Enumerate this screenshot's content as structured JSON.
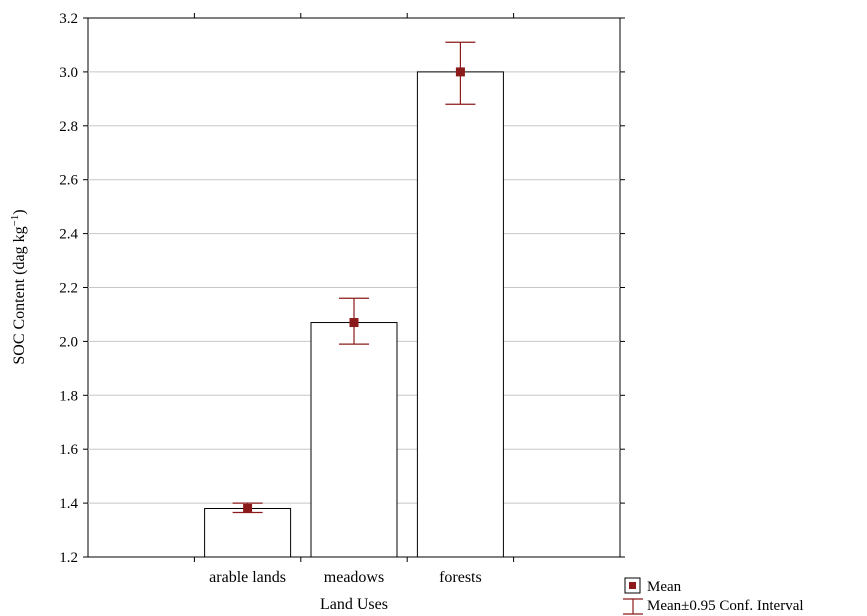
{
  "chart_data": {
    "type": "bar",
    "categories": [
      "arable lands",
      "meadows",
      "forests"
    ],
    "series": [
      {
        "name": "Mean",
        "values": [
          1.38,
          2.07,
          3.0
        ],
        "ci_low": [
          1.365,
          1.99,
          2.88
        ],
        "ci_high": [
          1.4,
          2.16,
          3.11
        ]
      }
    ],
    "xlabel": "Land Uses",
    "ylabel_main": "SOC Content (dag kg",
    "ylabel_sup": "−1",
    "ylabel_close": ")",
    "ylim": [
      1.2,
      3.2
    ],
    "yticks": [
      "1.2",
      "1.4",
      "1.6",
      "1.8",
      "2.0",
      "2.2",
      "2.4",
      "2.6",
      "2.8",
      "3.0",
      "3.2"
    ],
    "grid": true,
    "legend_position": "bottom-right",
    "legend": {
      "mean_label": "Mean",
      "ci_label": "Mean±0.95 Conf. Interval"
    },
    "colors": {
      "marker": "#8b1a1a",
      "bar_fill": "#ffffff",
      "bar_stroke": "#000000",
      "grid": "#c8c8c8"
    }
  }
}
